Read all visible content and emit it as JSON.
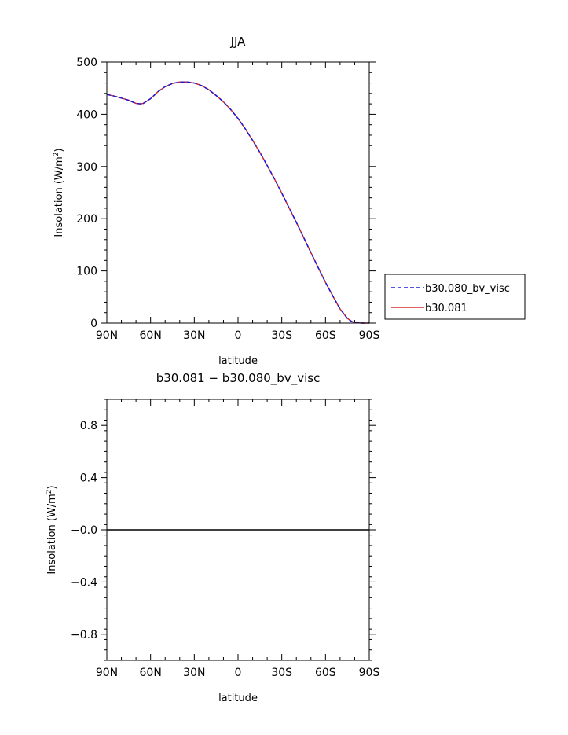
{
  "figure": {
    "width": 723,
    "height": 935
  },
  "chart_data": [
    {
      "type": "line",
      "title": "JJA",
      "xlabel": "latitude",
      "ylabel_main": "Insolation (W/m",
      "ylabel_sup": "2",
      "ylabel_end": ")",
      "x_tick_labels": [
        "90N",
        "60N",
        "30N",
        "0",
        "30S",
        "60S",
        "90S"
      ],
      "x_tick_values": [
        90,
        60,
        30,
        0,
        -30,
        -60,
        -90
      ],
      "xlim": [
        90,
        -90
      ],
      "ylim": [
        0,
        500
      ],
      "y_ticks": [
        0,
        100,
        200,
        300,
        400,
        500
      ],
      "y_tick_labels": [
        "0",
        "100",
        "200",
        "300",
        "400",
        "500"
      ],
      "legend_position": "right, outside plot",
      "series": [
        {
          "name": "b30.080_bv_visc",
          "color": "#1a1adb",
          "dash": "dashed",
          "x": [
            90,
            85,
            80,
            75,
            70,
            67,
            65,
            60,
            55,
            50,
            45,
            40,
            35,
            30,
            25,
            20,
            15,
            10,
            5,
            0,
            -5,
            -10,
            -15,
            -20,
            -25,
            -30,
            -35,
            -40,
            -45,
            -50,
            -55,
            -60,
            -65,
            -70,
            -75,
            -78,
            -80,
            -85,
            -90
          ],
          "y": [
            438,
            435,
            431,
            427,
            421,
            420,
            421,
            430,
            443,
            453,
            459,
            462,
            462,
            460,
            455,
            447,
            436,
            424,
            409,
            392,
            372,
            350,
            327,
            302,
            276,
            249,
            221,
            193,
            164,
            135,
            106,
            78,
            52,
            27,
            9,
            3,
            1,
            0,
            0
          ]
        },
        {
          "name": "b30.081",
          "color": "#d42a2a",
          "dash": "solid",
          "x": [
            90,
            85,
            80,
            75,
            70,
            67,
            65,
            60,
            55,
            50,
            45,
            40,
            35,
            30,
            25,
            20,
            15,
            10,
            5,
            0,
            -5,
            -10,
            -15,
            -20,
            -25,
            -30,
            -35,
            -40,
            -45,
            -50,
            -55,
            -60,
            -65,
            -70,
            -75,
            -78,
            -80,
            -85,
            -90
          ],
          "y": [
            438,
            435,
            431,
            427,
            421,
            420,
            421,
            430,
            443,
            453,
            459,
            462,
            462,
            460,
            455,
            447,
            436,
            424,
            409,
            392,
            372,
            350,
            327,
            302,
            276,
            249,
            221,
            193,
            164,
            135,
            106,
            78,
            52,
            27,
            9,
            3,
            1,
            0,
            0
          ]
        }
      ]
    },
    {
      "type": "line",
      "title": "b30.081 − b30.080_bv_visc",
      "xlabel": "latitude",
      "ylabel_main": "Insolation (W/m",
      "ylabel_sup": "2",
      "ylabel_end": ")",
      "x_tick_labels": [
        "90N",
        "60N",
        "30N",
        "0",
        "30S",
        "60S",
        "90S"
      ],
      "x_tick_values": [
        90,
        60,
        30,
        0,
        -30,
        -60,
        -90
      ],
      "xlim": [
        90,
        -90
      ],
      "ylim": [
        -1.0,
        1.0
      ],
      "y_ticks": [
        -0.8,
        -0.4,
        0.0,
        0.4,
        0.8
      ],
      "y_tick_labels": [
        "−0.8",
        "−0.4",
        "−0.0",
        "0.4",
        "0.8"
      ],
      "series": [
        {
          "color": "#000000",
          "dash": "solid",
          "x": [
            90,
            -90
          ],
          "y": [
            0,
            0
          ]
        }
      ]
    }
  ]
}
